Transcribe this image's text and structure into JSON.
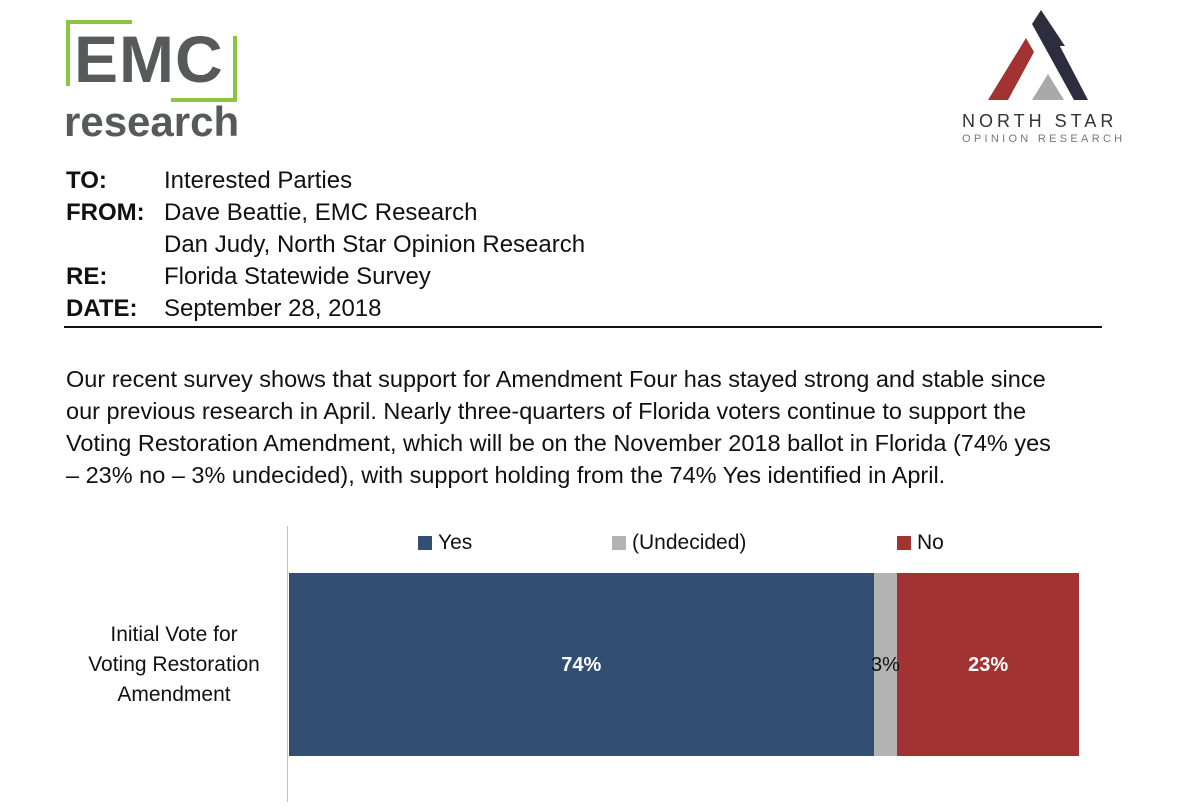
{
  "logos": {
    "emc": {
      "main": "EMC",
      "sub": "research",
      "accent_color": "#8cc63f",
      "text_color": "#58595b"
    },
    "north_star": {
      "name": "NORTH STAR",
      "sub": "OPINION RESEARCH"
    }
  },
  "memo": {
    "to_label": "TO:",
    "to_value": "Interested Parties",
    "from_label": "FROM:",
    "from_value_1": "Dave Beattie, EMC Research",
    "from_value_2": "Dan Judy, North Star Opinion Research",
    "re_label": "RE:",
    "re_value": "Florida Statewide Survey",
    "date_label": "DATE:",
    "date_value": "September 28, 2018"
  },
  "paragraph": {
    "line1": "Our recent survey shows that support for Amendment Four has stayed strong and stable since",
    "line2": "our previous research in April. Nearly three-quarters of Florida voters continue to support the",
    "line3": "Voting Restoration Amendment, which will be on the November 2018 ballot in Florida (74% yes",
    "line4": "– 23% no – 3% undecided), with support holding from the 74% Yes identified in April."
  },
  "chart_data": {
    "type": "bar",
    "orientation": "horizontal-stacked",
    "categories": [
      "Initial Vote for Voting Restoration Amendment"
    ],
    "category_lines": [
      "Initial Vote for",
      "Voting Restoration",
      "Amendment"
    ],
    "series": [
      {
        "name": "Yes",
        "values": [
          74
        ],
        "label": "74%",
        "color": "#334e73"
      },
      {
        "name": "(Undecided)",
        "values": [
          3
        ],
        "label": "3%",
        "color": "#b3b3b3"
      },
      {
        "name": "No",
        "values": [
          23
        ],
        "label": "23%",
        "color": "#a33232"
      }
    ],
    "xlim": [
      0,
      100
    ],
    "legend_position": "top"
  }
}
